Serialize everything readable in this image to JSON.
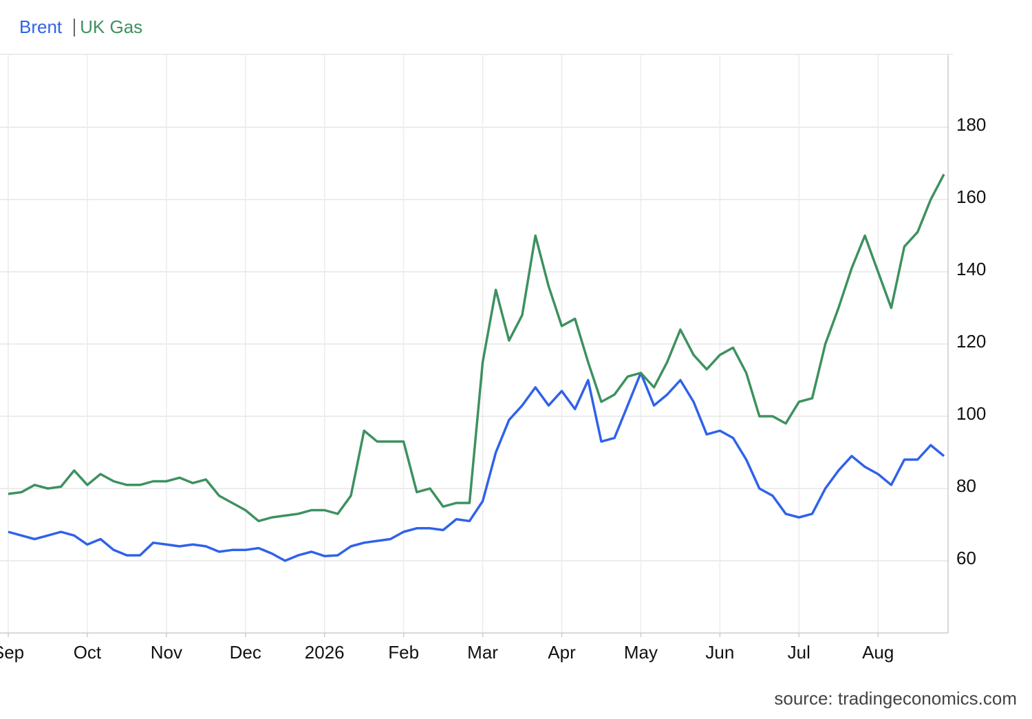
{
  "chart_data": {
    "type": "line",
    "categories": [
      "Sep",
      null,
      null,
      null,
      null,
      null,
      "Oct",
      null,
      null,
      null,
      null,
      null,
      "Nov",
      null,
      null,
      null,
      null,
      null,
      "Dec",
      null,
      null,
      null,
      null,
      null,
      "2026",
      null,
      null,
      null,
      null,
      null,
      "Feb",
      null,
      null,
      null,
      null,
      null,
      "Mar",
      null,
      null,
      null,
      null,
      null,
      "Apr",
      null,
      null,
      null,
      null,
      null,
      "May",
      null,
      null,
      null,
      null,
      null,
      "Jun",
      null,
      null,
      null,
      null,
      null,
      "Jul",
      null,
      null,
      null,
      null,
      null,
      "Aug",
      null,
      null,
      null,
      null,
      null
    ],
    "series": [
      {
        "name": "Brent",
        "color": "#2f62ea",
        "values": [
          68,
          67,
          66,
          67,
          68,
          67,
          64.5,
          66,
          63,
          61.5,
          61.5,
          65,
          64.5,
          64,
          64.5,
          64,
          62.5,
          63,
          63,
          63.5,
          62,
          60,
          61.5,
          62.5,
          61.3,
          61.5,
          64,
          65,
          65.5,
          66,
          68,
          69,
          69,
          68.5,
          71.5,
          71,
          76.5,
          90,
          99,
          103,
          108,
          103,
          107,
          102,
          110,
          93,
          94,
          103,
          112,
          103,
          106,
          110,
          104,
          95,
          96,
          94,
          88,
          80,
          78,
          73,
          72,
          73,
          80,
          85,
          89,
          86,
          84,
          81,
          88,
          88,
          92,
          89
        ]
      },
      {
        "name": "UK Gas",
        "color": "#3d9160",
        "values": [
          78.5,
          79,
          81,
          80,
          80.5,
          85,
          81,
          84,
          82,
          81,
          81,
          82,
          82,
          83,
          81.5,
          82.5,
          78,
          76,
          74,
          71,
          72,
          72.5,
          73,
          74,
          74,
          73,
          78,
          96,
          93,
          93,
          93,
          79,
          80,
          75,
          76,
          76,
          115,
          135,
          121,
          128,
          150,
          136,
          125,
          127,
          115,
          104,
          106,
          111,
          112,
          108,
          115,
          124,
          117,
          113,
          117,
          119,
          112,
          100,
          100,
          98,
          104,
          105,
          120,
          130,
          141,
          150,
          140,
          130,
          147,
          151,
          160,
          167
        ]
      }
    ],
    "ylim": [
      40,
      200
    ],
    "yticks": [
      60,
      80,
      100,
      120,
      140,
      160,
      180
    ],
    "grid": true,
    "source": "source: tradingeconomics.com"
  }
}
